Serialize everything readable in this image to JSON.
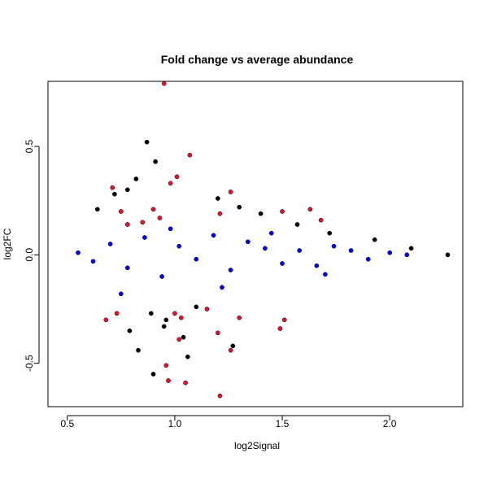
{
  "chart_data": {
    "type": "scatter",
    "title": "Fold change vs average abundance",
    "xlabel": "log2Signal",
    "ylabel": "log2FC",
    "xlim": [
      0.41,
      2.34
    ],
    "ylim": [
      -0.7,
      0.8
    ],
    "xticks": [
      0.5,
      1.0,
      1.5,
      2.0
    ],
    "xtick_labels": [
      "0.5",
      "1.0",
      "1.5",
      "2.0"
    ],
    "yticks": [
      -0.5,
      0.0,
      0.5
    ],
    "ytick_labels": [
      "-0.5",
      "0.0",
      "0.5"
    ],
    "grid": false,
    "legend": "none",
    "colors": {
      "black": "#000000",
      "blue": "#0000ff",
      "red": "#e8102b"
    },
    "series": [
      {
        "color": "black",
        "note_points": "dense cloud of ~several thousand points; representative outliers listed",
        "x": [
          0.87,
          0.91,
          0.82,
          0.72,
          0.64,
          0.78,
          1.2,
          1.3,
          1.4,
          1.57,
          1.72,
          1.93,
          2.1,
          2.27,
          0.96,
          1.04,
          0.9,
          1.06,
          0.83,
          0.79,
          0.95,
          0.89,
          1.1,
          1.27
        ],
        "y": [
          0.52,
          0.43,
          0.35,
          0.28,
          0.21,
          0.3,
          0.26,
          0.22,
          0.19,
          0.14,
          0.1,
          0.07,
          0.03,
          0.0,
          -0.3,
          -0.38,
          -0.55,
          -0.47,
          -0.44,
          -0.35,
          -0.33,
          -0.27,
          -0.24,
          -0.42
        ]
      },
      {
        "color": "blue",
        "note_points": "scattered points overlaying the central cloud; representative subset",
        "x": [
          0.55,
          0.62,
          0.7,
          0.78,
          0.86,
          0.94,
          1.02,
          1.1,
          1.18,
          1.26,
          1.34,
          1.42,
          1.5,
          1.58,
          1.66,
          1.74,
          1.82,
          1.9,
          2.0,
          2.08,
          0.75,
          0.98,
          1.22,
          1.45,
          1.7
        ],
        "y": [
          0.01,
          -0.03,
          0.05,
          -0.06,
          0.08,
          -0.1,
          0.04,
          -0.02,
          0.09,
          -0.07,
          0.06,
          0.03,
          -0.04,
          0.02,
          -0.05,
          0.04,
          0.02,
          -0.02,
          0.01,
          0.0,
          -0.18,
          0.12,
          -0.15,
          0.1,
          -0.09
        ]
      },
      {
        "color": "red",
        "x": [
          0.95,
          1.07,
          1.01,
          0.98,
          0.71,
          0.75,
          1.26,
          1.21,
          1.5,
          1.63,
          1.68,
          0.78,
          0.85,
          0.9,
          0.93,
          1.0,
          1.03,
          1.15,
          1.2,
          1.26,
          1.3,
          1.49,
          1.51,
          1.05,
          1.21,
          0.97,
          0.96,
          1.02,
          0.68,
          0.73
        ],
        "y": [
          0.79,
          0.46,
          0.36,
          0.33,
          0.31,
          0.2,
          0.29,
          0.19,
          0.2,
          0.21,
          0.16,
          0.14,
          0.15,
          0.21,
          0.17,
          -0.27,
          -0.29,
          -0.25,
          -0.36,
          -0.44,
          -0.29,
          -0.34,
          -0.3,
          -0.59,
          -0.65,
          -0.58,
          -0.51,
          -0.39,
          -0.3,
          -0.27
        ]
      }
    ]
  }
}
